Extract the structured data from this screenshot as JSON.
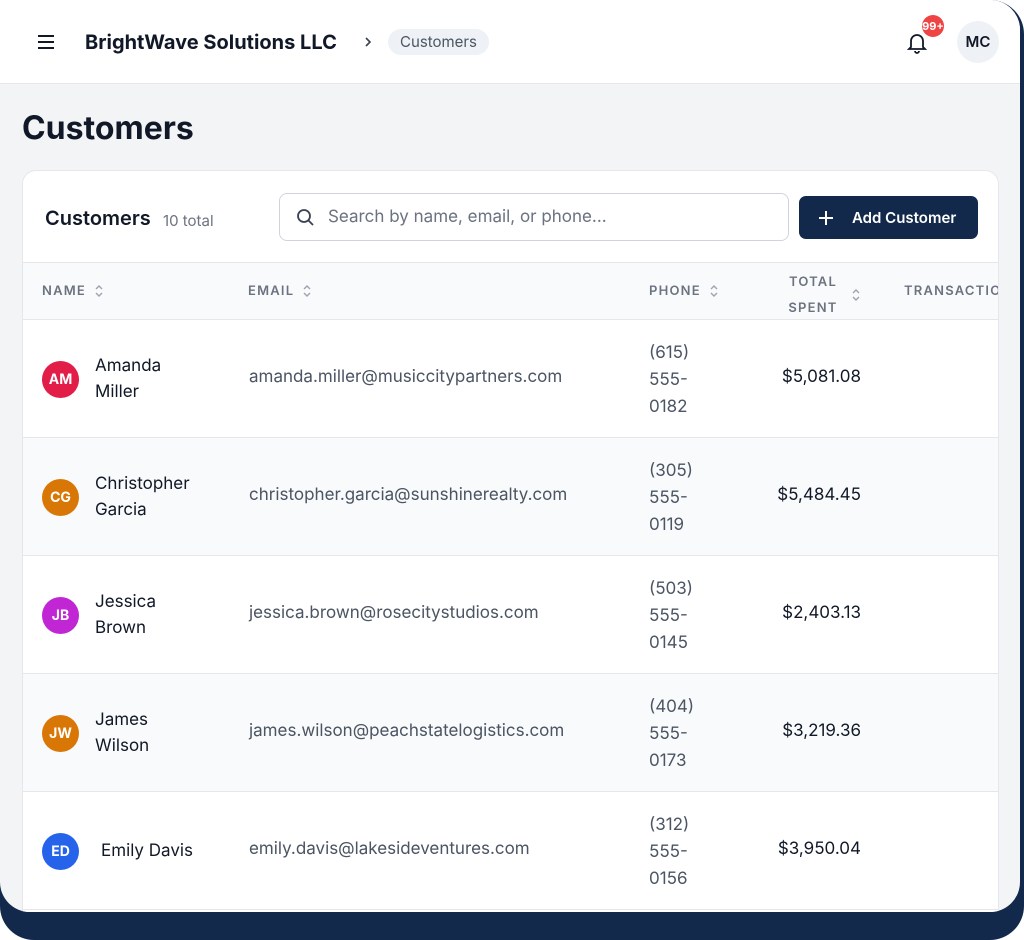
{
  "header": {
    "company": "BrightWave Solutions LLC",
    "breadcrumb": "Customers",
    "notification_badge": "99+",
    "user_initials": "MC"
  },
  "page": {
    "title": "Customers"
  },
  "card": {
    "title": "Customers",
    "count": "10 total",
    "search_placeholder": "Search by name, email, or phone...",
    "add_button": "Add Customer"
  },
  "table": {
    "columns": [
      "NAME",
      "EMAIL",
      "PHONE",
      "TOTAL SPENT",
      "TRANSACTIONS"
    ],
    "rows": [
      {
        "initials": "AM",
        "color": "#e11d48",
        "name": "Amanda Miller",
        "email": "amanda.miller@musiccitypartners.com",
        "phone": "(615) 555-0182",
        "total_spent": "$5,081.08"
      },
      {
        "initials": "CG",
        "color": "#d97706",
        "name": "Christopher Garcia",
        "email": "christopher.garcia@sunshinerealty.com",
        "phone": "(305) 555-0119",
        "total_spent": "$5,484.45"
      },
      {
        "initials": "JB",
        "color": "#c026d3",
        "name": "Jessica Brown",
        "email": "jessica.brown@rosecitystudios.com",
        "phone": "(503) 555-0145",
        "total_spent": "$2,403.13"
      },
      {
        "initials": "JW",
        "color": "#d97706",
        "name": "James Wilson",
        "email": "james.wilson@peachstatelogistics.com",
        "phone": "(404) 555-0173",
        "total_spent": "$3,219.36"
      },
      {
        "initials": "ED",
        "color": "#2563eb",
        "name": "Emily Davis",
        "email": "emily.davis@lakesideventures.com",
        "phone": "(312) 555-0156",
        "total_spent": "$3,950.04"
      }
    ]
  }
}
